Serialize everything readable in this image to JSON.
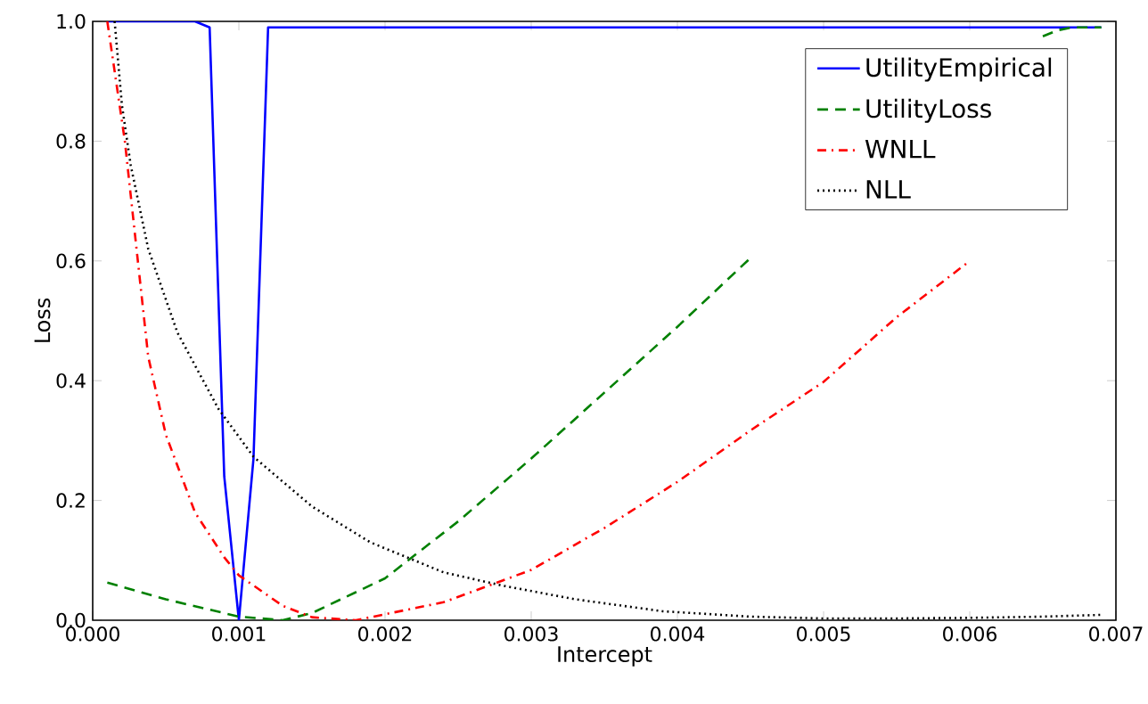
{
  "chart_data": {
    "type": "line",
    "xlabel": "Intercept",
    "ylabel": "Loss",
    "xlim": [
      0,
      0.007
    ],
    "ylim": [
      0,
      1
    ],
    "xticks": [
      {
        "value": 0,
        "label": "0.000"
      },
      {
        "value": 0.001,
        "label": "0.001"
      },
      {
        "value": 0.002,
        "label": "0.002"
      },
      {
        "value": 0.003,
        "label": "0.003"
      },
      {
        "value": 0.004,
        "label": "0.004"
      },
      {
        "value": 0.005,
        "label": "0.005"
      },
      {
        "value": 0.006,
        "label": "0.006"
      },
      {
        "value": 0.007,
        "label": "0.007"
      }
    ],
    "yticks": [
      {
        "value": 0,
        "label": "0.0"
      },
      {
        "value": 0.2,
        "label": "0.2"
      },
      {
        "value": 0.4,
        "label": "0.4"
      },
      {
        "value": 0.6,
        "label": "0.6"
      },
      {
        "value": 0.8,
        "label": "0.8"
      },
      {
        "value": 1,
        "label": "1.0"
      }
    ],
    "grid": false,
    "legend": "top right",
    "marker": "none",
    "series": [
      {
        "name": "UtilityEmpirical",
        "color": "#0000ff",
        "line_style": "solid",
        "x": [
          0.0001,
          0.0007,
          0.0008,
          0.0009,
          0.001,
          0.0011,
          0.0012,
          0.0069
        ],
        "values": [
          1.0,
          1.0,
          0.99,
          0.24,
          0.0,
          0.27,
          0.99,
          0.99
        ]
      },
      {
        "name": "UtilityLoss",
        "color": "#008000",
        "line_style": "dashed",
        "x": [
          0.0001,
          0.0005,
          0.001,
          0.0013,
          0.0015,
          0.002,
          0.0025,
          0.003,
          0.0035,
          0.004,
          0.0045,
          0.0055,
          0.0065,
          0.0066,
          0.0067,
          0.0069
        ],
        "values": [
          0.063,
          0.035,
          0.006,
          0.0,
          0.012,
          0.07,
          0.165,
          0.27,
          0.38,
          0.49,
          0.605,
          null,
          0.975,
          0.985,
          0.99,
          0.99
        ]
      },
      {
        "name": "WNLL",
        "color": "#ff0000",
        "line_style": "dashdot",
        "x": [
          0.0001,
          0.00022,
          0.00026,
          0.00038,
          0.0005,
          0.0007,
          0.0009,
          0.001,
          0.0013,
          0.0015,
          0.0018,
          0.0024,
          0.003,
          0.0035,
          0.004,
          0.0045,
          0.005,
          0.0055,
          0.006
        ],
        "values": [
          1.0,
          0.8,
          0.71,
          0.44,
          0.31,
          0.18,
          0.105,
          0.075,
          0.024,
          0.005,
          0.0,
          0.03,
          0.084,
          0.154,
          0.231,
          0.317,
          0.398,
          0.506,
          0.6
        ]
      },
      {
        "name": "NLL",
        "color": "#000000",
        "line_style": "dotted",
        "x": [
          0.00015,
          0.0002,
          0.00026,
          0.00038,
          0.00058,
          0.00086,
          0.0011,
          0.0015,
          0.0019,
          0.0024,
          0.0028,
          0.0033,
          0.0039,
          0.0045,
          0.005,
          0.0055,
          0.006,
          0.0065,
          0.0069
        ],
        "values": [
          1.0,
          0.86,
          0.76,
          0.62,
          0.48,
          0.353,
          0.273,
          0.19,
          0.13,
          0.08,
          0.058,
          0.035,
          0.015,
          0.006,
          0.003,
          0.003,
          0.004,
          0.006,
          0.009
        ]
      }
    ]
  }
}
